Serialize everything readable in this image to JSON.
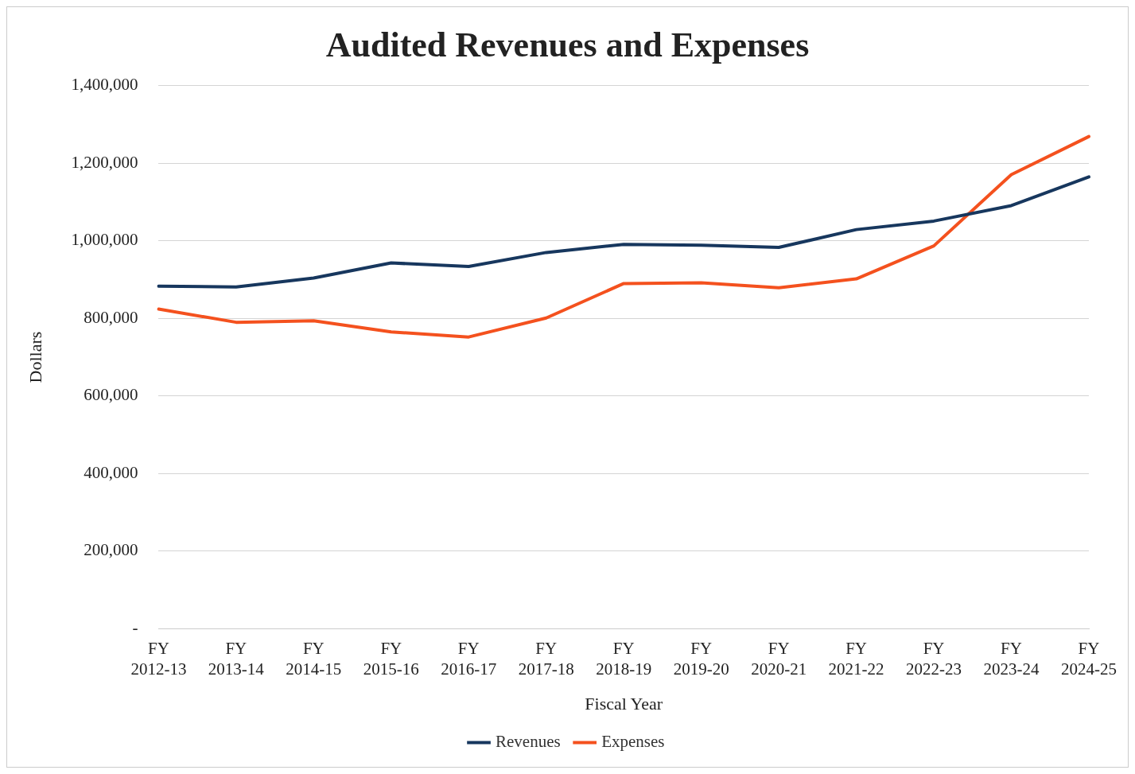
{
  "chart_data": {
    "type": "line",
    "title": "Audited Revenues and Expenses",
    "xlabel": "Fiscal Year",
    "ylabel": "Dollars",
    "categories": [
      "FY 2012-13",
      "FY 2013-14",
      "FY 2014-15",
      "FY 2015-16",
      "FY 2016-17",
      "FY 2017-18",
      "FY 2018-19",
      "FY 2019-20",
      "FY 2020-21",
      "FY 2021-22",
      "FY 2022-23",
      "FY 2023-24",
      "FY 2024-25"
    ],
    "series": [
      {
        "name": "Revenues",
        "color": "#17375e",
        "values": [
          883000,
          881000,
          904000,
          943000,
          934000,
          970000,
          991000,
          989000,
          983000,
          1029000,
          1051000,
          1091000,
          1165000
        ]
      },
      {
        "name": "Expenses",
        "color": "#f4511e",
        "values": [
          824000,
          790000,
          794000,
          765000,
          752000,
          801000,
          890000,
          892000,
          879000,
          902000,
          987000,
          1171000,
          1269000
        ]
      }
    ],
    "ylim": [
      0,
      1400000
    ],
    "yticks": [
      {
        "value": 0,
        "label": "-"
      },
      {
        "value": 200000,
        "label": "200,000"
      },
      {
        "value": 400000,
        "label": "400,000"
      },
      {
        "value": 600000,
        "label": "600,000"
      },
      {
        "value": 800000,
        "label": "800,000"
      },
      {
        "value": 1000000,
        "label": "1,000,000"
      },
      {
        "value": 1200000,
        "label": "1,200,000"
      },
      {
        "value": 1400000,
        "label": "1,400,000"
      }
    ],
    "grid": "y",
    "legend": "bottom",
    "marker": "none",
    "line_style": "solid"
  }
}
